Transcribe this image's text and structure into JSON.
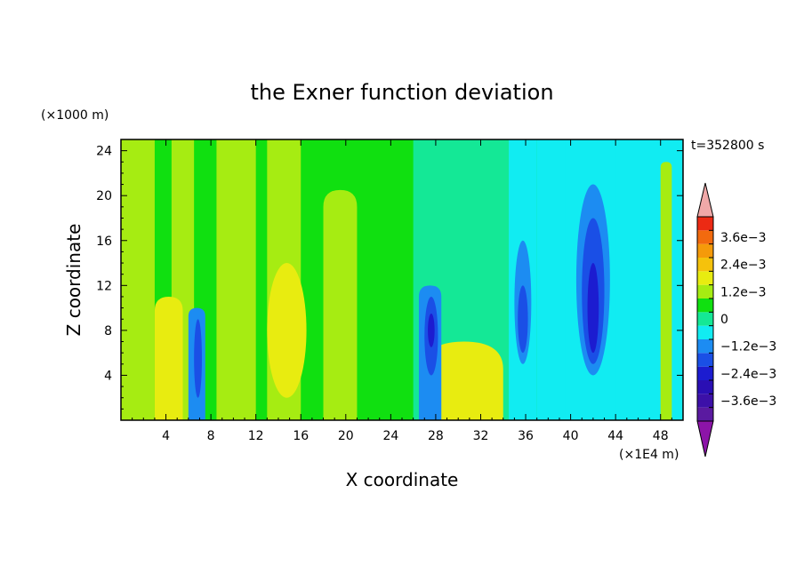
{
  "chart_data": {
    "type": "heatmap",
    "title": "the Exner function deviation",
    "xlabel": "X coordinate",
    "ylabel": "Z coordinate",
    "x_unit": "(×1E4 m)",
    "y_unit": "(×1000 m)",
    "time_label": "t=352800 s",
    "xlim": [
      0,
      50
    ],
    "ylim": [
      0,
      25
    ],
    "x_ticks": [
      4,
      8,
      12,
      16,
      20,
      24,
      28,
      32,
      36,
      40,
      44,
      48
    ],
    "y_ticks": [
      4,
      8,
      12,
      16,
      20,
      24
    ],
    "colorbar": {
      "levels": [
        {
          "value": -0.0042,
          "color": "#5a1aa0"
        },
        {
          "value": -0.0036,
          "color": "#3c10a8"
        },
        {
          "value": -0.003,
          "color": "#2a0fb4"
        },
        {
          "value": -0.0024,
          "color": "#1c1cd0"
        },
        {
          "value": -0.0018,
          "color": "#1a4fe6"
        },
        {
          "value": -0.0012,
          "color": "#1c8cf2"
        },
        {
          "value": -0.0006,
          "color": "#11ecf2"
        },
        {
          "value": 0.0,
          "color": "#14e896"
        },
        {
          "value": 0.0006,
          "color": "#10e010"
        },
        {
          "value": 0.0012,
          "color": "#a6ec12"
        },
        {
          "value": 0.0018,
          "color": "#e8ec10"
        },
        {
          "value": 0.0024,
          "color": "#f5c20c"
        },
        {
          "value": 0.003,
          "color": "#f59a0a"
        },
        {
          "value": 0.0036,
          "color": "#f26a0e"
        },
        {
          "value": 0.0042,
          "color": "#ec2a14"
        }
      ],
      "under_color": "#8c14a8",
      "over_color": "#f0a8a8",
      "labels": [
        "3.6e−3",
        "2.4e−3",
        "1.2e−3",
        "0",
        "−1.2e−3",
        "−2.4e−3",
        "−3.6e−3"
      ],
      "label_values": [
        0.0036,
        0.0024,
        0.0012,
        0,
        -0.0012,
        -0.0024,
        -0.0036
      ]
    },
    "field_features": [
      {
        "kind": "background",
        "level": 0.0006
      },
      {
        "kind": "region",
        "x": [
          26,
          37
        ],
        "z": [
          0,
          25
        ],
        "level": 0.0
      },
      {
        "kind": "region",
        "x": [
          37,
          50
        ],
        "z": [
          0,
          25
        ],
        "level": -0.0006
      },
      {
        "kind": "region",
        "x": [
          0,
          3
        ],
        "z": [
          0,
          25
        ],
        "level": 0.0012
      },
      {
        "kind": "region",
        "x": [
          4.5,
          6.5
        ],
        "z": [
          0,
          25
        ],
        "level": 0.0012
      },
      {
        "kind": "region",
        "x": [
          8.5,
          12
        ],
        "z": [
          0,
          25
        ],
        "level": 0.0012
      },
      {
        "kind": "region",
        "x": [
          13,
          16
        ],
        "z": [
          0,
          25
        ],
        "level": 0.0012
      },
      {
        "kind": "region",
        "x": [
          18,
          21
        ],
        "z": [
          0,
          20.5
        ],
        "level": 0.0012
      },
      {
        "kind": "region",
        "x": [
          3,
          5.5
        ],
        "z": [
          0,
          11
        ],
        "level": 0.0018
      },
      {
        "kind": "region",
        "x": [
          13,
          16.5
        ],
        "z": [
          2,
          14
        ],
        "level": 0.0018
      },
      {
        "kind": "region",
        "x": [
          27,
          34
        ],
        "z": [
          0,
          7
        ],
        "level": 0.0018
      },
      {
        "kind": "region",
        "x": [
          6,
          7.5
        ],
        "z": [
          0,
          10
        ],
        "level": -0.0012
      },
      {
        "kind": "region",
        "x": [
          6.5,
          7.2
        ],
        "z": [
          2,
          9
        ],
        "level": -0.0018
      },
      {
        "kind": "region",
        "x": [
          26.5,
          28.5
        ],
        "z": [
          0,
          12
        ],
        "level": -0.0012
      },
      {
        "kind": "region",
        "x": [
          27,
          28.2
        ],
        "z": [
          4,
          11
        ],
        "level": -0.0018
      },
      {
        "kind": "region",
        "x": [
          27.3,
          27.9
        ],
        "z": [
          6.5,
          9.5
        ],
        "level": -0.0024
      },
      {
        "kind": "region",
        "x": [
          34.5,
          37
        ],
        "z": [
          0,
          25
        ],
        "level": -0.0006
      },
      {
        "kind": "region",
        "x": [
          35,
          36.5
        ],
        "z": [
          5,
          16
        ],
        "level": -0.0012
      },
      {
        "kind": "region",
        "x": [
          35.3,
          36.2
        ],
        "z": [
          6,
          12
        ],
        "level": -0.0018
      },
      {
        "kind": "region",
        "x": [
          39.5,
          44
        ],
        "z": [
          0,
          25
        ],
        "level": -0.0006
      },
      {
        "kind": "region",
        "x": [
          40.5,
          43.5
        ],
        "z": [
          4,
          21
        ],
        "level": -0.0012
      },
      {
        "kind": "region",
        "x": [
          41,
          43
        ],
        "z": [
          5,
          18
        ],
        "level": -0.0018
      },
      {
        "kind": "region",
        "x": [
          41.5,
          42.5
        ],
        "z": [
          6,
          14
        ],
        "level": -0.0024
      },
      {
        "kind": "region",
        "x": [
          48,
          49
        ],
        "z": [
          0,
          23
        ],
        "level": 0.0012
      }
    ]
  }
}
